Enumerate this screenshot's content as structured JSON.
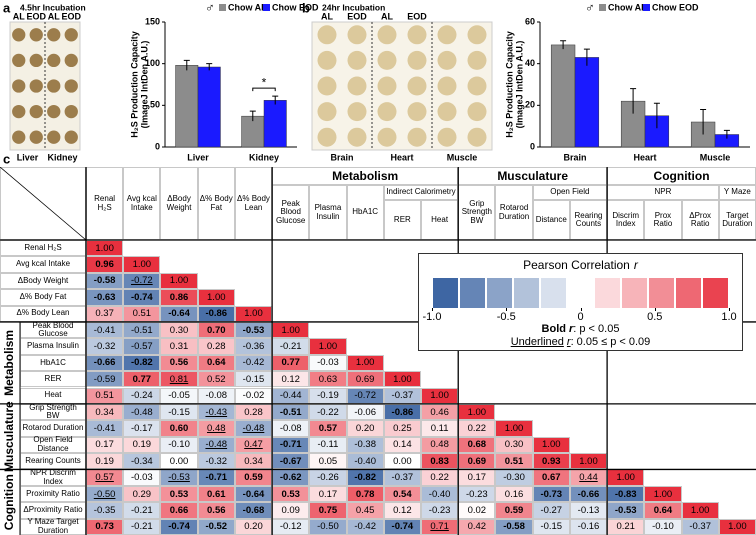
{
  "figure": {
    "panels": [
      "a",
      "b",
      "c"
    ]
  },
  "plates": [
    {
      "title": "4.5hr Incubation",
      "column_labels": [
        "AL",
        "EOD",
        "AL",
        "EOD"
      ],
      "tissues": [
        "Liver",
        "Kidney"
      ]
    },
    {
      "title": "24hr Incubation",
      "column_labels": [
        "AL",
        "EOD",
        "AL",
        "EOD"
      ],
      "tissues": [
        "Brain",
        "Heart",
        "Muscle"
      ]
    }
  ],
  "chart_data": [
    {
      "type": "bar",
      "y_label": [
        "H₂S Production Capacity",
        "(ImageJ IntDen A.U.)"
      ],
      "legend_title": "♂",
      "categories": [
        "Liver",
        "Kidney"
      ],
      "series": [
        {
          "name": "Chow AL",
          "color": "#8c8c8c",
          "values": [
            98,
            37
          ],
          "errors": [
            6,
            6
          ]
        },
        {
          "name": "Chow EOD",
          "color": "#1a1aff",
          "values": [
            96,
            56
          ],
          "errors": [
            4,
            5
          ]
        }
      ],
      "ylim": [
        0,
        150
      ],
      "yticks": [
        0,
        50,
        100,
        150
      ],
      "significance": [
        {
          "category_index": 1,
          "label": "*"
        }
      ]
    },
    {
      "type": "bar",
      "y_label": [
        "H₂S Production Capacity",
        "(ImageJ IntDen A.U.)"
      ],
      "legend_title": "♂",
      "categories": [
        "Brain",
        "Heart",
        "Muscle"
      ],
      "series": [
        {
          "name": "Chow AL",
          "color": "#8c8c8c",
          "values": [
            49,
            22,
            12
          ],
          "errors": [
            2,
            6,
            6
          ]
        },
        {
          "name": "Chow EOD",
          "color": "#1a1aff",
          "values": [
            43,
            15,
            6
          ],
          "errors": [
            4,
            6,
            2
          ]
        }
      ],
      "ylim": [
        0,
        60
      ],
      "yticks": [
        0,
        20,
        40,
        60
      ]
    },
    {
      "type": "heatmap",
      "row_labels": [
        "Renal H₂S",
        "Avg kcal Intake",
        "ΔBody Weight",
        "Δ% Body Fat",
        "Δ% Body Lean",
        "Peak Blood Glucose",
        "Plasma Insulin",
        "HbA1C",
        "RER",
        "Heat",
        "Grip Strength BW",
        "Rotarod Duration",
        "Open Field Distance",
        "Rearing Counts",
        "NPR Discrim Index",
        "Proximity Ratio",
        "ΔProximity Ratio",
        "Y Maze Target Duration"
      ],
      "column_labels": [
        "Renal H₂S",
        "Avg kcal Intake",
        "ΔBody Weight",
        "Δ% Body Fat",
        "Δ% Body Lean",
        "Peak Blood Glucose",
        "Plasma Insulin",
        "HbA1C",
        "RER",
        "Heat",
        "Grip Strength BW",
        "Rotarod Duration",
        "Distance",
        "Rearing Counts",
        "Discrim Index",
        "Prox Ratio",
        "ΔProx Ratio",
        "Target Duration"
      ],
      "groups": [
        {
          "name": "Metabolism",
          "start": 5,
          "end": 9
        },
        {
          "name": "Musculature",
          "start": 10,
          "end": 13
        },
        {
          "name": "Cognition",
          "start": 14,
          "end": 17
        }
      ],
      "column_subgroups": [
        {
          "name": "Indirect Calorimetry",
          "start": 8,
          "end": 9
        },
        {
          "name": "Open Field",
          "start": 12,
          "end": 13
        },
        {
          "name": "NPR",
          "start": 14,
          "end": 16
        },
        {
          "name": "Y Maze",
          "start": 17,
          "end": 17
        }
      ],
      "values": [
        [
          1
        ],
        [
          0.96,
          1
        ],
        [
          -0.58,
          -0.72,
          1
        ],
        [
          -0.63,
          -0.74,
          0.86,
          1
        ],
        [
          0.37,
          0.51,
          -0.64,
          -0.86,
          1
        ],
        [
          -0.41,
          -0.51,
          0.3,
          0.7,
          -0.53,
          1
        ],
        [
          -0.32,
          -0.57,
          0.31,
          0.28,
          -0.36,
          -0.21,
          1
        ],
        [
          -0.66,
          -0.82,
          0.56,
          0.64,
          -0.42,
          0.77,
          -0.03,
          1
        ],
        [
          -0.59,
          0.77,
          0.81,
          0.52,
          -0.15,
          0.12,
          0.63,
          0.69,
          1
        ],
        [
          0.51,
          -0.24,
          -0.05,
          -0.08,
          -0.02,
          -0.44,
          -0.19,
          -0.72,
          -0.37,
          1
        ],
        [
          0.34,
          -0.48,
          -0.15,
          -0.43,
          0.28,
          -0.51,
          -0.22,
          -0.06,
          -0.86,
          0.46,
          1
        ],
        [
          -0.41,
          -0.17,
          0.6,
          0.48,
          -0.48,
          -0.08,
          0.57,
          0.2,
          0.25,
          0.11,
          0.22,
          1
        ],
        [
          0.17,
          0.19,
          -0.1,
          -0.48,
          0.47,
          -0.71,
          -0.11,
          -0.38,
          0.14,
          0.48,
          0.68,
          0.3,
          1
        ],
        [
          0.19,
          -0.34,
          0,
          -0.32,
          0.34,
          -0.67,
          0.05,
          -0.4,
          0,
          0.83,
          0.69,
          0.51,
          0.93,
          1
        ],
        [
          0.57,
          -0.03,
          -0.53,
          -0.71,
          0.59,
          -0.62,
          -0.26,
          -0.82,
          -0.37,
          0.22,
          0.17,
          -0.3,
          0.67,
          0.44,
          1
        ],
        [
          -0.5,
          0.29,
          0.53,
          0.61,
          -0.64,
          0.53,
          0.17,
          0.78,
          0.54,
          -0.4,
          -0.23,
          0.16,
          -0.73,
          -0.66,
          -0.83,
          1
        ],
        [
          -0.35,
          -0.21,
          0.66,
          0.56,
          -0.68,
          0.09,
          0.75,
          0.45,
          0.12,
          -0.23,
          0.02,
          0.59,
          -0.27,
          -0.13,
          -0.53,
          0.64,
          1
        ],
        [
          0.73,
          -0.21,
          -0.74,
          -0.52,
          0.2,
          -0.12,
          -0.5,
          -0.42,
          -0.74,
          0.71,
          0.42,
          -0.58,
          -0.15,
          -0.16,
          0.21,
          -0.1,
          -0.37,
          1
        ]
      ],
      "value_labels": [
        [
          "1.00"
        ],
        [
          "0.96",
          "1.00"
        ],
        [
          "-0.58",
          "-0.72",
          "1.00"
        ],
        [
          "-0.63",
          "-0.74",
          "0.86",
          "1.00"
        ],
        [
          "0.37",
          "0.51",
          "-0.64",
          "-0.86",
          "1.00"
        ],
        [
          "-0.41",
          "-0.51",
          "0.30",
          "0.70",
          "-0.53",
          "1.00"
        ],
        [
          "-0.32",
          "-0.57",
          "0.31",
          "0.28",
          "-0.36",
          "-0.21",
          "1.00"
        ],
        [
          "-0.66",
          "-0.82",
          "0.56",
          "0.64",
          "-0.42",
          "0.77",
          "-0.03",
          "1.00"
        ],
        [
          "-0.59",
          "0.77",
          "0.81",
          "0.52",
          "-0.15",
          "0.12",
          "0.63",
          "0.69",
          "1.00"
        ],
        [
          "0.51",
          "-0.24",
          "-0.05",
          "-0.08",
          "-0.02",
          "-0.44",
          "-0.19",
          "-0.72",
          "-0.37",
          "1.00"
        ],
        [
          "0.34",
          "-0.48",
          "-0.15",
          "-0.43",
          "0.28",
          "-0.51",
          "-0.22",
          "-0.06",
          "-0.86",
          "0.46",
          "1.00"
        ],
        [
          "-0.41",
          "-0.17",
          "0.60",
          "0.48",
          "-0.48",
          "-0.08",
          "0.57",
          "0.20",
          "0.25",
          "0.11",
          "0.22",
          "1.00"
        ],
        [
          "0.17",
          "0.19",
          "-0.10",
          "-0.48",
          "0.47",
          "-0.71",
          "-0.11",
          "-0.38",
          "0.14",
          "0.48",
          "0.68",
          "0.30",
          "1.00"
        ],
        [
          "0.19",
          "-0.34",
          "0.00",
          "-0.32",
          "0.34",
          "-0.67",
          "0.05",
          "-0.40",
          "0.00",
          "0.83",
          "0.69",
          "0.51",
          "0.93",
          "1.00"
        ],
        [
          "0.57",
          "-0.03",
          "-0.53",
          "-0.71",
          "0.59",
          "-0.62",
          "-0.26",
          "-0.82",
          "-0.37",
          "0.22",
          "0.17",
          "-0.30",
          "0.67",
          "0.44",
          "1.00"
        ],
        [
          "-0.50",
          "0.29",
          "0.53",
          "0.61",
          "-0.64",
          "0.53",
          "0.17",
          "0.78",
          "0.54",
          "-0.40",
          "-0.23",
          "0.16",
          "-0.73",
          "-0.66",
          "-0.83",
          "1.00"
        ],
        [
          "-0.35",
          "-0.21",
          "0.66",
          "0.56",
          "-0.68",
          "0.09",
          "0.75",
          "0.45",
          "0.12",
          "-0.23",
          "0.02",
          "0.59",
          "-0.27",
          "-0.13",
          "-0.53",
          "0.64",
          "1.00"
        ],
        [
          "0.73",
          "-0.21",
          "-0.74",
          "-0.52",
          "0.20",
          "-0.12",
          "-0.50",
          "-0.42",
          "-0.74",
          "0.71",
          "0.42",
          "-0.58",
          "-0.15",
          "-0.16",
          "0.21",
          "-0.10",
          "-0.37",
          "1.00"
        ]
      ],
      "emphasis": [
        [
          null
        ],
        [
          "bold",
          null
        ],
        [
          "bold",
          "underline",
          null
        ],
        [
          "bold",
          "bold",
          "bold",
          null
        ],
        [
          null,
          null,
          "bold",
          "bold",
          null
        ],
        [
          null,
          null,
          null,
          "bold",
          "bold",
          null
        ],
        [
          null,
          null,
          null,
          null,
          null,
          null,
          null
        ],
        [
          "bold",
          "bold",
          "bold",
          "bold",
          null,
          "bold",
          null,
          null
        ],
        [
          null,
          "bold",
          "underline",
          null,
          null,
          null,
          null,
          null,
          null
        ],
        [
          null,
          null,
          null,
          null,
          null,
          null,
          null,
          null,
          null,
          null
        ],
        [
          null,
          null,
          null,
          "underline",
          null,
          "bold",
          null,
          null,
          "bold",
          null,
          null
        ],
        [
          null,
          null,
          "bold",
          "underline",
          "underline",
          null,
          "bold",
          null,
          null,
          null,
          null,
          null
        ],
        [
          null,
          null,
          null,
          "underline",
          "underline",
          "bold",
          null,
          null,
          null,
          null,
          "bold",
          null,
          null
        ],
        [
          null,
          null,
          null,
          null,
          null,
          "bold",
          null,
          null,
          null,
          "bold",
          "bold",
          "bold",
          "bold",
          null
        ],
        [
          "underline",
          null,
          "underline",
          "bold",
          "bold",
          "bold",
          null,
          "bold",
          null,
          null,
          null,
          null,
          "bold",
          "underline",
          null
        ],
        [
          "underline",
          null,
          "bold",
          "bold",
          "bold",
          "bold",
          null,
          "bold",
          "bold",
          null,
          null,
          null,
          "bold",
          "bold",
          "bold",
          null
        ],
        [
          null,
          null,
          "bold",
          "bold",
          "bold",
          null,
          "bold",
          null,
          null,
          null,
          null,
          "bold",
          null,
          null,
          "bold",
          "bold",
          null
        ],
        [
          "bold",
          null,
          "bold",
          "bold",
          null,
          null,
          null,
          null,
          "bold",
          "underline",
          null,
          "bold",
          null,
          null,
          null,
          null,
          null,
          null
        ]
      ],
      "colors": {
        "negative": "#2b579a",
        "positive": "#e8303e"
      },
      "colorbar": {
        "title": "Pearson Correlation",
        "symbol": "r",
        "lim": [
          -1,
          1
        ],
        "ticks": [
          {
            "value": -1,
            "label": "-1.0"
          },
          -0.5,
          0,
          0.5,
          {
            "value": 1,
            "label": "1.0"
          }
        ]
      },
      "notes": [
        {
          "emphasis": "Bold",
          "symbol": "r",
          "style": "bold",
          "text": ": p < 0.05"
        },
        {
          "emphasis": "Underlined",
          "symbol": "r",
          "style": "underline",
          "text": ": 0.05 ≤ p < 0.09"
        }
      ]
    }
  ]
}
